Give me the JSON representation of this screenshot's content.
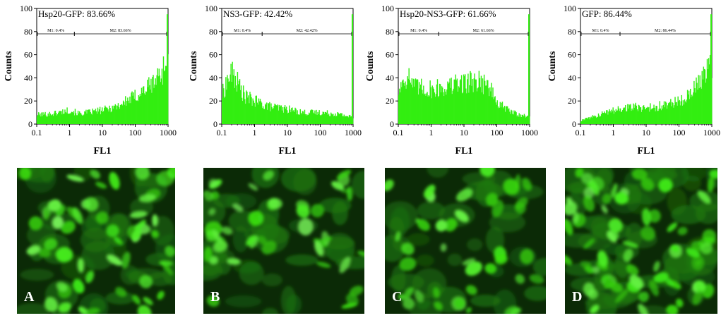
{
  "colors": {
    "histogram": "#33ee11",
    "image_bg": "#0b2a06",
    "cell": "#3fe21a"
  },
  "chart_data": [
    {
      "type": "bar",
      "title": "Hsp20-GFP: 83.66%",
      "xlabel": "FL1",
      "ylabel": "Counts",
      "xscale": "log",
      "xlim": [
        0.1,
        1000
      ],
      "ylim": [
        0,
        100
      ],
      "xticks": [
        "0.1",
        "1",
        "10",
        "100",
        "1000"
      ],
      "yticks": [
        "0",
        "20",
        "40",
        "60",
        "80",
        "100"
      ],
      "markers": [
        {
          "label": "M1: 0.4%",
          "range": [
            0.1,
            1.4
          ]
        },
        {
          "label": "M2: 83.66%",
          "range": [
            1.4,
            1000
          ]
        }
      ],
      "profile": {
        "x": [
          0.1,
          0.3,
          1,
          2,
          10,
          30,
          100,
          300,
          600,
          1000
        ],
        "y": [
          8,
          9,
          12,
          9,
          12,
          16,
          24,
          34,
          44,
          55
        ]
      }
    },
    {
      "type": "bar",
      "title": "NS3-GFP: 42.42%",
      "xlabel": "FL1",
      "ylabel": "Counts",
      "xscale": "log",
      "xlim": [
        0.1,
        1000
      ],
      "ylim": [
        0,
        100
      ],
      "xticks": [
        "0.1",
        "1",
        "10",
        "100",
        "1000"
      ],
      "yticks": [
        "0",
        "20",
        "40",
        "60",
        "80",
        "100"
      ],
      "markers": [
        {
          "label": "M1: 0.4%",
          "range": [
            0.1,
            1.7
          ]
        },
        {
          "label": "M2: 42.42%",
          "range": [
            1.7,
            1000
          ]
        }
      ],
      "profile": {
        "x": [
          0.1,
          0.15,
          0.2,
          0.3,
          0.5,
          1,
          3,
          10,
          30,
          100,
          300,
          1000
        ],
        "y": [
          25,
          38,
          44,
          36,
          24,
          20,
          15,
          13,
          10,
          10,
          9,
          6
        ]
      }
    },
    {
      "type": "bar",
      "title": "Hsp20-NS3-GFP: 61.66%",
      "xlabel": "FL1",
      "ylabel": "Counts",
      "xscale": "log",
      "xlim": [
        0.1,
        1000
      ],
      "ylim": [
        0,
        100
      ],
      "xticks": [
        "0.1",
        "1",
        "10",
        "100",
        "1000"
      ],
      "yticks": [
        "0",
        "20",
        "40",
        "60",
        "80",
        "100"
      ],
      "markers": [
        {
          "label": "M1: 0.4%",
          "range": [
            0.1,
            1.7
          ]
        },
        {
          "label": "M2: 61.66%",
          "range": [
            1.7,
            1000
          ]
        }
      ],
      "profile": {
        "x": [
          0.1,
          0.15,
          0.2,
          0.3,
          1,
          3,
          10,
          30,
          60,
          100,
          300,
          1000
        ],
        "y": [
          28,
          40,
          42,
          32,
          30,
          32,
          36,
          38,
          32,
          18,
          10,
          6
        ]
      }
    },
    {
      "type": "bar",
      "title": "GFP: 86.44%",
      "xlabel": "FL1",
      "ylabel": "Counts",
      "xscale": "log",
      "xlim": [
        0.1,
        1000
      ],
      "ylim": [
        0,
        100
      ],
      "xticks": [
        "0.1",
        "1",
        "10",
        "100",
        "1000"
      ],
      "yticks": [
        "0",
        "20",
        "40",
        "60",
        "80",
        "100"
      ],
      "markers": [
        {
          "label": "M1: 0.4%",
          "range": [
            0.1,
            1.6
          ]
        },
        {
          "label": "M2: 86.44%",
          "range": [
            1.6,
            1000
          ]
        }
      ],
      "profile": {
        "x": [
          0.1,
          0.3,
          1,
          3,
          10,
          30,
          100,
          300,
          600,
          1000
        ],
        "y": [
          3,
          7,
          12,
          15,
          14,
          16,
          20,
          30,
          42,
          50
        ]
      }
    }
  ],
  "images": [
    {
      "letter": "A"
    },
    {
      "letter": "B"
    },
    {
      "letter": "C"
    },
    {
      "letter": "D"
    }
  ]
}
